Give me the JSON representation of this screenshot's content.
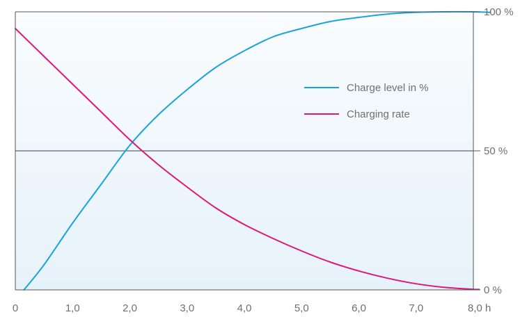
{
  "chart_data": {
    "type": "line",
    "title": "",
    "xlabel": "",
    "ylabel": "",
    "xlim": [
      0,
      8.0
    ],
    "ylim": [
      0,
      100
    ],
    "x_ticks": [
      "0",
      "1,0",
      "2,0",
      "3,0",
      "4,0",
      "5,0",
      "6,0",
      "7,0",
      "8,0 h"
    ],
    "x_tick_values": [
      0,
      1,
      2,
      3,
      4,
      5,
      6,
      7,
      8
    ],
    "y_ticks": [
      "0 %",
      "50 %",
      "100 %"
    ],
    "y_tick_values": [
      0,
      50,
      100
    ],
    "y_axis_side": "right",
    "reference_line": 50,
    "grid": false,
    "legend_position": "upper-right",
    "colors": {
      "background_top": "#fafcfe",
      "background_bottom": "#e6f2fa",
      "axis": "#555555",
      "reference_line": "#5a6670"
    },
    "series": [
      {
        "name": "Charge level in %",
        "color": "#1aa3d9",
        "x": [
          0.15,
          0.5,
          1.0,
          1.5,
          2.0,
          2.5,
          3.0,
          3.5,
          4.0,
          4.5,
          5.0,
          5.5,
          6.0,
          6.5,
          7.0,
          7.5,
          8.0,
          8.3
        ],
        "y": [
          0,
          9,
          24,
          38,
          52,
          63,
          72,
          80,
          86,
          91,
          94,
          96.5,
          98,
          99.2,
          99.8,
          100,
          100,
          99.8
        ]
      },
      {
        "name": "Charging rate",
        "color": "#e0157a",
        "x": [
          0,
          0.5,
          1.0,
          1.5,
          2.0,
          2.5,
          3.0,
          3.5,
          4.0,
          4.5,
          5.0,
          5.5,
          6.0,
          6.5,
          7.0,
          7.5,
          8.0,
          8.1
        ],
        "y": [
          94,
          84,
          74,
          64,
          54,
          45,
          37,
          29.5,
          23.5,
          18.5,
          14,
          10,
          6.8,
          4.2,
          2.2,
          0.9,
          0.2,
          0.2
        ]
      }
    ]
  }
}
